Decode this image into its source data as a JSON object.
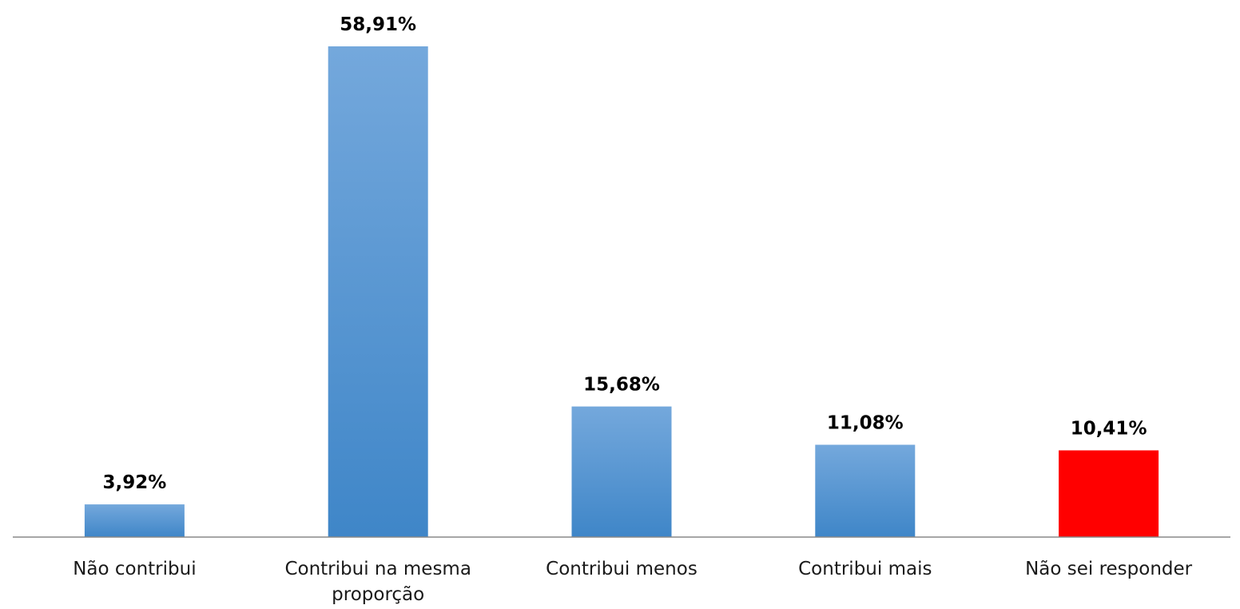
{
  "chart_data": {
    "type": "bar",
    "categories": [
      [
        "Não contribui"
      ],
      [
        "Contribui na mesma",
        "proporção"
      ],
      [
        "Contribui menos"
      ],
      [
        "Contribui mais"
      ],
      [
        "Não sei responder"
      ]
    ],
    "values": [
      3.92,
      58.91,
      15.68,
      11.08,
      10.41
    ],
    "value_labels": [
      "3,92%",
      "58,91%",
      "15,68%",
      "11,08%",
      "10,41%"
    ],
    "bar_colors": [
      "blue-gradient",
      "blue-gradient",
      "blue-gradient",
      "blue-gradient",
      "#FF0000"
    ],
    "colors": {
      "bar_gradient_top": "#74A8DC",
      "bar_gradient_bottom": "#3F86C8",
      "highlight": "#FF0000",
      "axis": "#888888"
    },
    "title": "",
    "xlabel": "",
    "ylabel": "",
    "ylim": [
      0,
      60
    ],
    "grid": false,
    "legend": "none"
  }
}
